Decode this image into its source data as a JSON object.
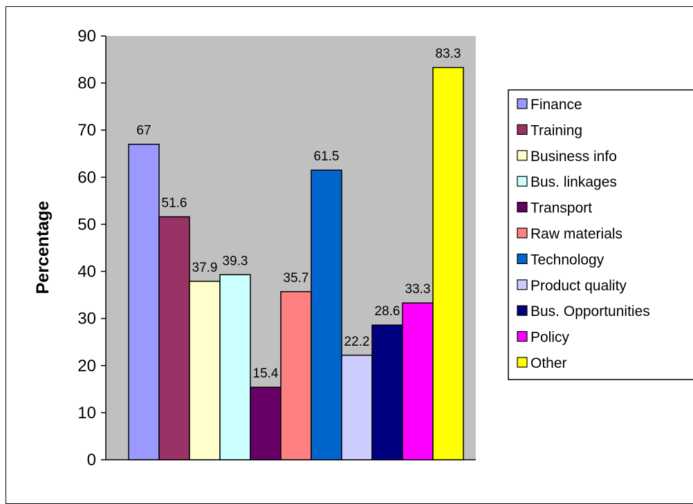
{
  "chart_data": {
    "type": "bar",
    "title": "",
    "xlabel": "",
    "ylabel": "Percentage",
    "ylim": [
      0,
      90
    ],
    "yticks": [
      0,
      10,
      20,
      30,
      40,
      50,
      60,
      70,
      80,
      90
    ],
    "grid": false,
    "plot_background": "#C0C0C0",
    "legend_position": "right",
    "series": [
      {
        "name": "Finance",
        "value": 67,
        "label": "67",
        "color": "#9999FF"
      },
      {
        "name": "Training",
        "value": 51.6,
        "label": "51.6",
        "color": "#993366"
      },
      {
        "name": "Business info",
        "value": 37.9,
        "label": "37.9",
        "color": "#FFFFCC"
      },
      {
        "name": "Bus. linkages",
        "value": 39.3,
        "label": "39.3",
        "color": "#CCFFFF"
      },
      {
        "name": "Transport",
        "value": 15.4,
        "label": "15.4",
        "color": "#660066"
      },
      {
        "name": "Raw materials",
        "value": 35.7,
        "label": "35.7",
        "color": "#FF8080"
      },
      {
        "name": "Technology",
        "value": 61.5,
        "label": "61.5",
        "color": "#0066CC"
      },
      {
        "name": "Product quality",
        "value": 22.2,
        "label": "22.2",
        "color": "#CCCCFF"
      },
      {
        "name": "Bus. Opportunities",
        "value": 28.6,
        "label": "28.6",
        "color": "#000080"
      },
      {
        "name": "Policy",
        "value": 33.3,
        "label": "33.3",
        "color": "#FF00FF"
      },
      {
        "name": "Other",
        "value": 83.3,
        "label": "83.3",
        "color": "#FFFF00"
      }
    ]
  }
}
